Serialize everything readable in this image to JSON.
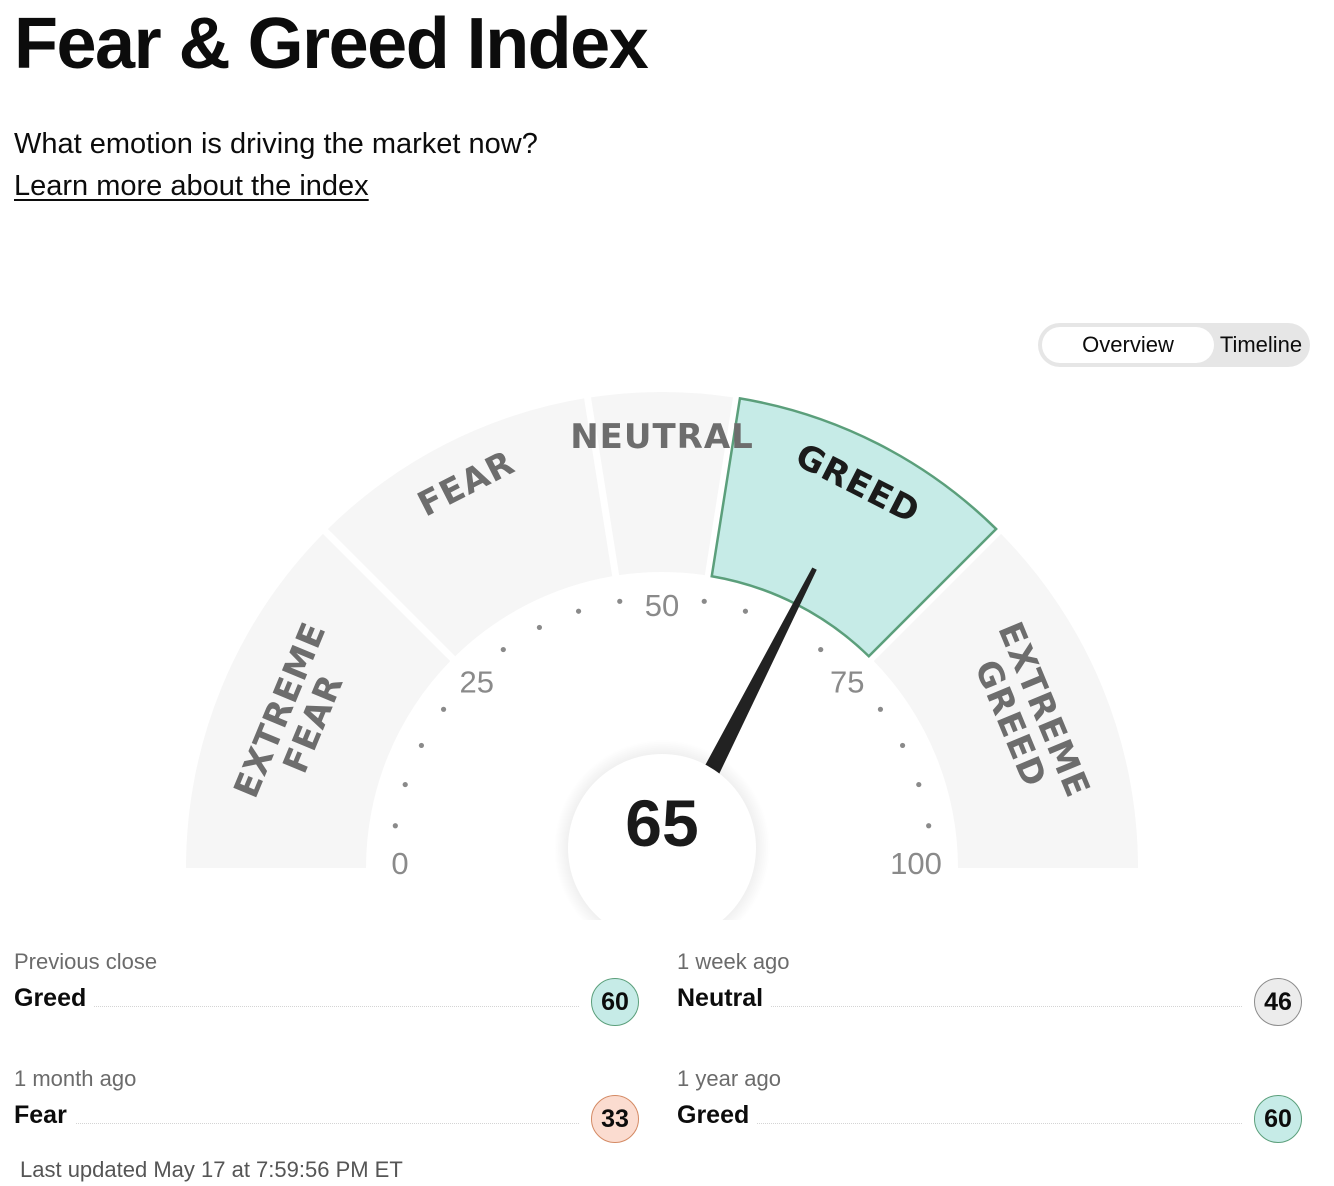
{
  "header": {
    "title": "Fear & Greed Index",
    "subtitle": "What emotion is driving the market now?",
    "learn_more": "Learn more about the index"
  },
  "toggle": {
    "options": [
      "Overview",
      "Timeline"
    ],
    "selected": "Overview"
  },
  "gauge": {
    "score": 65,
    "active_segment": "GREED",
    "segments": [
      {
        "lines": [
          "EXTREME",
          "FEAR"
        ],
        "from": 0,
        "to": 25
      },
      {
        "lines": [
          "FEAR"
        ],
        "from": 25,
        "to": 45
      },
      {
        "lines": [
          "NEUTRAL"
        ],
        "from": 45,
        "to": 55
      },
      {
        "lines": [
          "GREED"
        ],
        "from": 55,
        "to": 75
      },
      {
        "lines": [
          "EXTREME",
          "GREED"
        ],
        "from": 75,
        "to": 100
      }
    ],
    "tick_labels": [
      "0",
      "25",
      "50",
      "75",
      "100"
    ],
    "colors": {
      "segment_bg": "#f6f6f6",
      "active_fill": "#c6ebe7",
      "active_stroke": "#5b9f7b",
      "needle": "#222222",
      "label_inactive": "#6d6d6d",
      "label_active": "#1b1b1b",
      "tick": "#8a8a8a"
    }
  },
  "history": [
    {
      "label": "Previous close",
      "rating": "Greed",
      "score": "60",
      "tone": "greed"
    },
    {
      "label": "1 week ago",
      "rating": "Neutral",
      "score": "46",
      "tone": "neutral"
    },
    {
      "label": "1 month ago",
      "rating": "Fear",
      "score": "33",
      "tone": "fear"
    },
    {
      "label": "1 year ago",
      "rating": "Greed",
      "score": "60",
      "tone": "greed"
    }
  ],
  "last_updated": "Last updated May 17 at 7:59:56 PM ET"
}
